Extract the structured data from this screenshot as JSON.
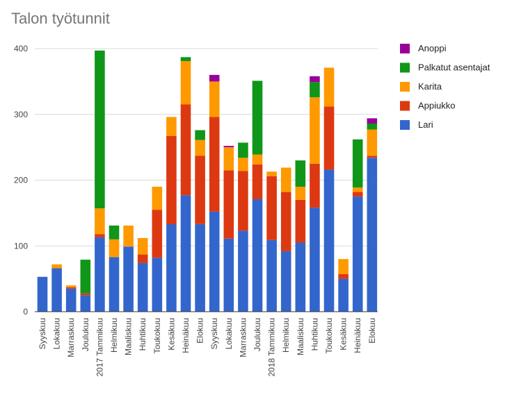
{
  "chart_data": {
    "type": "bar",
    "stacked": true,
    "title": "Talon työtunnit",
    "xlabel": "",
    "ylabel": "",
    "ylim": [
      0,
      400
    ],
    "yticks": [
      0,
      100,
      200,
      300,
      400
    ],
    "grid": true,
    "legend_position": "right",
    "categories": [
      "Syyskuu",
      "Lokakuu",
      "Marraskuu",
      "Joulukuu",
      "2017 Tammikuu",
      "Helmikuu",
      "Maaliskuu",
      "Huhtikuu",
      "Toukokuu",
      "Kesäkuu",
      "Heinäkuu",
      "Elokuu",
      "Syyskuu",
      "Lokakuu",
      "Marraskuu",
      "Joulukuu",
      "2018 Tammikuu",
      "Helmikuu",
      "Maaliskuu",
      "Huhtikuu",
      "Toukokuu",
      "Kesäkuu",
      "Heinäkuu",
      "Elokuu"
    ],
    "series": [
      {
        "name": "Lari",
        "color": "#3366cc",
        "values": [
          53,
          66,
          35,
          25,
          113,
          83,
          99,
          74,
          82,
          133,
          177,
          133,
          152,
          111,
          123,
          171,
          109,
          92,
          105,
          158,
          216,
          50,
          175,
          234
        ]
      },
      {
        "name": "Appiukko",
        "color": "#dc3912",
        "values": [
          0,
          0,
          2,
          3,
          5,
          0,
          0,
          13,
          73,
          134,
          138,
          104,
          144,
          104,
          91,
          53,
          97,
          90,
          65,
          67,
          96,
          7,
          7,
          3
        ]
      },
      {
        "name": "Karita",
        "color": "#ff9900",
        "values": [
          0,
          6,
          3,
          0,
          39,
          27,
          32,
          25,
          35,
          29,
          66,
          24,
          54,
          35,
          20,
          15,
          7,
          37,
          20,
          101,
          59,
          23,
          7,
          40
        ]
      },
      {
        "name": "Palkatut asentajat",
        "color": "#109618",
        "values": [
          0,
          0,
          0,
          51,
          240,
          21,
          0,
          0,
          0,
          0,
          6,
          15,
          0,
          0,
          23,
          112,
          0,
          0,
          40,
          23,
          0,
          0,
          73,
          9
        ]
      },
      {
        "name": "Anoppi",
        "color": "#990099",
        "values": [
          0,
          0,
          0,
          0,
          0,
          0,
          0,
          0,
          0,
          0,
          0,
          0,
          10,
          2,
          0,
          0,
          0,
          0,
          0,
          9,
          0,
          0,
          0,
          8
        ]
      }
    ]
  }
}
